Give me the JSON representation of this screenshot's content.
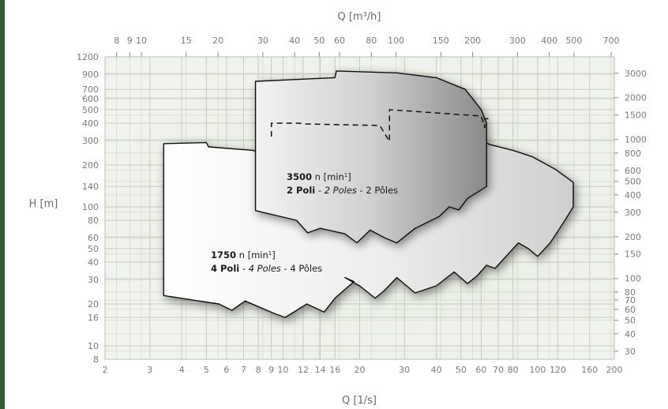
{
  "chart_data": {
    "type": "area",
    "title": "",
    "top_axis": {
      "label": "Q [m³/h]",
      "scale": "log",
      "range": [
        8,
        700
      ],
      "ticks": [
        8,
        9,
        10,
        15,
        20,
        30,
        40,
        50,
        60,
        80,
        100,
        150,
        200,
        300,
        400,
        500,
        700
      ]
    },
    "bottom_axis": {
      "label": "Q [1/s]",
      "scale": "log",
      "range": [
        2,
        200
      ],
      "ticks": [
        2,
        3,
        4,
        5,
        6,
        7,
        8,
        9,
        10,
        12,
        14,
        16,
        20,
        30,
        40,
        50,
        60,
        70,
        80,
        100,
        120,
        160,
        200
      ]
    },
    "left_axis": {
      "label": "H [m]",
      "scale": "log",
      "range": [
        8,
        1200
      ],
      "ticks": [
        8,
        10,
        16,
        20,
        30,
        40,
        50,
        60,
        80,
        100,
        140,
        200,
        300,
        400,
        500,
        600,
        700,
        900,
        1200
      ]
    },
    "right_axis": {
      "label": "",
      "scale": "log",
      "ticks": [
        30,
        40,
        50,
        60,
        70,
        80,
        100,
        150,
        200,
        300,
        400,
        500,
        600,
        800,
        1000,
        1500,
        2000,
        3000
      ]
    },
    "grid": true,
    "series": [
      {
        "name_bold": "1750",
        "name_unit": " n [min",
        "name_sup": "1",
        "name_close": "]",
        "line2_bold": "4 Poli",
        "line2_sep1": " - ",
        "line2_italic": "4 Poles",
        "line2_sep2": " - 4 Pôles",
        "color": "#d8d8d8",
        "outline": [
          [
            3.4,
            285
          ],
          [
            5,
            290
          ],
          [
            5.1,
            270
          ],
          [
            7.6,
            255
          ],
          [
            8.6,
            235
          ],
          [
            8.6,
            300
          ],
          [
            60,
            300
          ],
          [
            65,
            280
          ],
          [
            80,
            255
          ],
          [
            95,
            230
          ],
          [
            118,
            185
          ],
          [
            138,
            150
          ],
          [
            138,
            100
          ],
          [
            128,
            80
          ],
          [
            112,
            55
          ],
          [
            100,
            44
          ],
          [
            92,
            50
          ],
          [
            84,
            55
          ],
          [
            68,
            36
          ],
          [
            63,
            38
          ],
          [
            58,
            32
          ],
          [
            53,
            28
          ],
          [
            47,
            34
          ],
          [
            40,
            27
          ],
          [
            33,
            24
          ],
          [
            28,
            31
          ],
          [
            25,
            25
          ],
          [
            23,
            22
          ],
          [
            20,
            27
          ],
          [
            17.5,
            31
          ],
          [
            19,
            29
          ],
          [
            16,
            22
          ],
          [
            14.5,
            17.5
          ],
          [
            12.4,
            20
          ],
          [
            10.2,
            16
          ],
          [
            9.3,
            17
          ],
          [
            7.1,
            21
          ],
          [
            6.3,
            18
          ],
          [
            5.6,
            20
          ],
          [
            3.4,
            23
          ]
        ]
      },
      {
        "name_bold": "3500",
        "name_unit": " n [min",
        "name_sup": "1",
        "name_close": "]",
        "line2_bold": "2 Poli",
        "line2_sep1": " - ",
        "line2_italic": "2 Poles",
        "line2_sep2": " - 2 Pôles",
        "color": "#a8a8a8",
        "outline": [
          [
            7.8,
            800
          ],
          [
            16,
            850
          ],
          [
            16.2,
            950
          ],
          [
            28,
            920
          ],
          [
            40,
            850
          ],
          [
            52,
            700
          ],
          [
            60,
            500
          ],
          [
            63,
            400
          ],
          [
            63,
            140
          ],
          [
            53,
            115
          ],
          [
            49,
            95
          ],
          [
            45,
            100
          ],
          [
            41,
            85
          ],
          [
            33,
            70
          ],
          [
            28,
            55
          ],
          [
            25,
            60
          ],
          [
            22,
            68
          ],
          [
            19.5,
            55
          ],
          [
            17.5,
            64
          ],
          [
            14,
            70
          ],
          [
            12.5,
            65
          ],
          [
            11.3,
            80
          ],
          [
            7.8,
            94
          ]
        ]
      }
    ],
    "dashed_line": [
      [
        9.0,
        320
      ],
      [
        9.0,
        400
      ],
      [
        11.5,
        400
      ],
      [
        12.0,
        395
      ],
      [
        24,
        385
      ],
      [
        26.2,
        295
      ],
      [
        26.2,
        500
      ],
      [
        60,
        450
      ],
      [
        62,
        370
      ],
      [
        62,
        430
      ],
      [
        64,
        430
      ]
    ]
  }
}
